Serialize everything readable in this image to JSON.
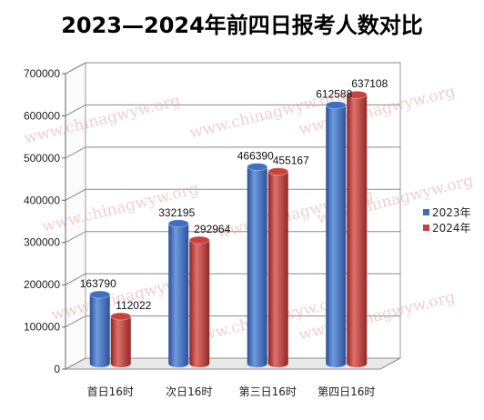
{
  "chart_data": {
    "type": "bar",
    "title": "2023—2024年前四日报考人数对比",
    "categories": [
      "首日16时",
      "次日16时",
      "第三日16时",
      "第四日16时"
    ],
    "series": [
      {
        "name": "2023年",
        "values": [
          163790,
          332195,
          466390,
          612588
        ],
        "color": "#3d6fc4"
      },
      {
        "name": "2024年",
        "values": [
          112022,
          292964,
          455167,
          637108
        ],
        "color": "#c9403d"
      }
    ],
    "ylim": [
      0,
      700000
    ],
    "yticks": [
      0,
      100000,
      200000,
      300000,
      400000,
      500000,
      600000,
      700000
    ],
    "grid": true,
    "legend": "right",
    "watermark": "www.chinagwyw.org"
  }
}
